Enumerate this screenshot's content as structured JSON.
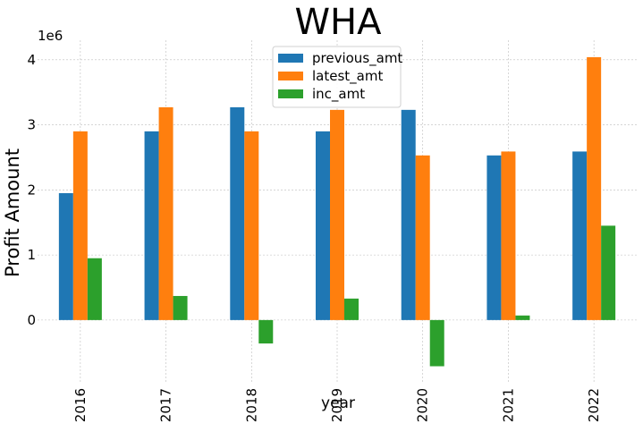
{
  "chart_data": {
    "type": "bar",
    "title": "WHA",
    "xlabel": "year",
    "ylabel": "Profit Amount",
    "y_offset_label": "1e6",
    "categories": [
      "2016",
      "2017",
      "2018",
      "2019",
      "2020",
      "2021",
      "2022"
    ],
    "series": [
      {
        "name": "previous_amt",
        "color": "#1f77b4",
        "values": [
          1950000,
          2900000,
          3270000,
          2900000,
          3230000,
          2530000,
          2590000
        ]
      },
      {
        "name": "latest_amt",
        "color": "#ff7f0e",
        "values": [
          2900000,
          3270000,
          2900000,
          3230000,
          2530000,
          2590000,
          4040000
        ]
      },
      {
        "name": "inc_amt",
        "color": "#2ca02c",
        "values": [
          950000,
          370000,
          -360000,
          330000,
          -710000,
          70000,
          1450000
        ]
      }
    ],
    "y_ticks": [
      0,
      1,
      2,
      3,
      4
    ],
    "ylim": [
      -950000,
      4300000
    ],
    "grid": true,
    "legend_position": "top-center"
  }
}
